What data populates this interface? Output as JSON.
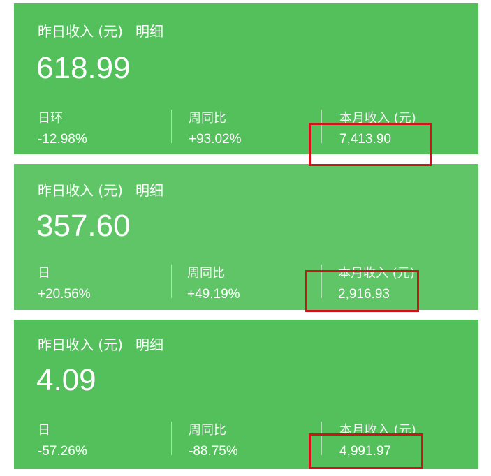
{
  "cards": [
    {
      "title": "昨日收入 (元)",
      "detail": "明细",
      "amount": "618.99",
      "stats": [
        {
          "label": "日环",
          "value": "-12.98%"
        },
        {
          "label": "周同比",
          "value": "+93.02%"
        },
        {
          "label": "本月收入 (元)",
          "value": "7,413.90"
        }
      ]
    },
    {
      "title": "昨日收入 (元)",
      "detail": "明细",
      "amount": "357.60",
      "stats": [
        {
          "label": "日",
          "value": "+20.56%"
        },
        {
          "label": "周同比",
          "value": "+49.19%"
        },
        {
          "label": "本月收入 (元)",
          "value": "2,916.93"
        }
      ]
    },
    {
      "title": "昨日收入 (元)",
      "detail": "明细",
      "amount": "4.09",
      "stats": [
        {
          "label": "日",
          "value": "-57.26%"
        },
        {
          "label": "周同比",
          "value": "-88.75%"
        },
        {
          "label": "本月收入 (元)",
          "value": "4,991.97"
        }
      ]
    }
  ],
  "colors": {
    "card": "#53c05c",
    "highlight": "#d0121b"
  }
}
